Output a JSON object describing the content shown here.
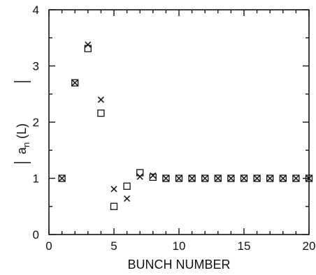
{
  "chart_data": {
    "type": "scatter",
    "xlabel": "BUNCH NUMBER",
    "ylabel_main": "a",
    "ylabel_sub": "n",
    "ylabel_arg": "(L)",
    "xlim": [
      0,
      20
    ],
    "ylim": [
      0,
      4
    ],
    "x_ticks": [
      0,
      5,
      10,
      15,
      20
    ],
    "x_minor_ticks": [
      1,
      2,
      3,
      4,
      6,
      7,
      8,
      9,
      11,
      12,
      13,
      14,
      16,
      17,
      18,
      19
    ],
    "y_ticks": [
      0,
      1,
      2,
      3,
      4
    ],
    "y_minor_ticks": [
      0.5,
      1.5,
      2.5,
      3.5
    ],
    "grid": false,
    "legend": "none",
    "series": [
      {
        "marker": "cross",
        "x": [
          1,
          2,
          3,
          4,
          5,
          6,
          7,
          8,
          9,
          10,
          11,
          12,
          13,
          14,
          15,
          16,
          17,
          18,
          19,
          20
        ],
        "values": [
          1.0,
          2.7,
          3.38,
          2.4,
          0.81,
          0.64,
          1.03,
          1.05,
          1.0,
          1.0,
          1.0,
          1.0,
          1.0,
          1.0,
          1.0,
          1.0,
          1.0,
          1.0,
          1.0,
          1.0
        ]
      },
      {
        "marker": "square",
        "x": [
          1,
          2,
          3,
          4,
          5,
          6,
          7,
          8,
          9,
          10,
          11,
          12,
          13,
          14,
          15,
          16,
          17,
          18,
          19,
          20
        ],
        "values": [
          1.0,
          2.7,
          3.31,
          2.16,
          0.5,
          0.86,
          1.1,
          1.02,
          1.0,
          1.0,
          1.0,
          1.0,
          1.0,
          1.0,
          1.0,
          1.0,
          1.0,
          1.0,
          1.0,
          1.0
        ]
      }
    ]
  }
}
